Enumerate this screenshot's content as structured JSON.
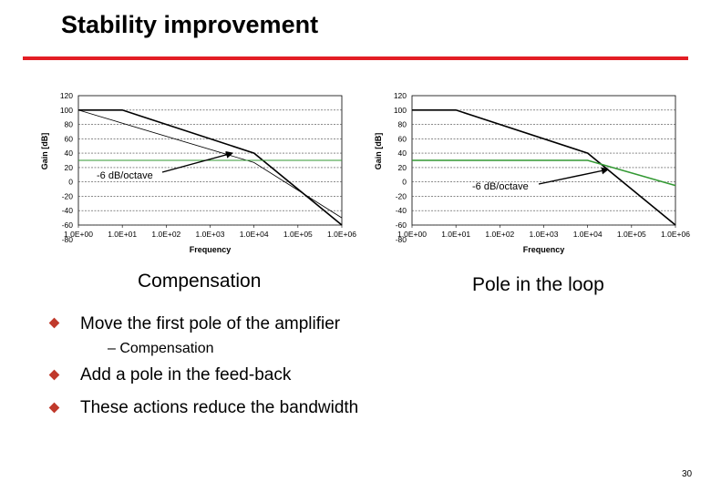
{
  "title": "Stability improvement",
  "accent_color": "#e31e24",
  "bullet_color": "#c0392b",
  "captions": {
    "left": "Compensation",
    "right": "Pole in the loop"
  },
  "bullets": [
    {
      "text": "Move the first pole of the amplifier",
      "sub": "– Compensation"
    },
    {
      "text": "Add a pole in the feed-back"
    },
    {
      "text": "These actions reduce the bandwidth"
    }
  ],
  "page_number": "30",
  "chart_data": [
    {
      "type": "line",
      "ylabel": "Gain [dB]",
      "xlabel": "Frequency",
      "x_scale": "log",
      "xlim": [
        1,
        1000000
      ],
      "ylim": [
        -60,
        120
      ],
      "x_ticks": [
        "1.0E+00",
        "1.0E+01",
        "1.0E+02",
        "1.0E+03",
        "1.0E+04",
        "1.0E+05",
        "1.0E+06"
      ],
      "y_ticks": [
        "120",
        "100",
        "80",
        "60",
        "40",
        "20",
        "0",
        "-20",
        "-40",
        "-60",
        "-80"
      ],
      "grid": "horizontal",
      "annotation": "-6 dB/octave",
      "series": [
        {
          "color": "#000000",
          "width": 1.6,
          "points": [
            [
              1,
              100
            ],
            [
              10,
              100
            ],
            [
              10000,
              40
            ],
            [
              1000000,
              -60
            ]
          ]
        },
        {
          "color": "#000000",
          "width": 0.8,
          "points": [
            [
              1,
              100
            ],
            [
              10000,
              27
            ],
            [
              1000000,
              -50
            ]
          ]
        },
        {
          "color": "#339933",
          "width": 1.0,
          "points": [
            [
              1,
              30
            ],
            [
              1000000,
              30
            ]
          ]
        }
      ]
    },
    {
      "type": "line",
      "ylabel": "Gain [dB]",
      "xlabel": "Frequency",
      "x_scale": "log",
      "xlim": [
        1,
        1000000
      ],
      "ylim": [
        -60,
        120
      ],
      "x_ticks": [
        "1.0E+00",
        "1.0E+01",
        "1.0E+02",
        "1.0E+03",
        "1.0E+04",
        "1.0E+05",
        "1.0E+06"
      ],
      "y_ticks": [
        "120",
        "100",
        "80",
        "60",
        "40",
        "20",
        "0",
        "-20",
        "-40",
        "-60",
        "-80"
      ],
      "grid": "horizontal",
      "annotation": "-6 dB/octave",
      "series": [
        {
          "color": "#000000",
          "width": 1.6,
          "points": [
            [
              1,
              100
            ],
            [
              10,
              100
            ],
            [
              10000,
              40
            ],
            [
              1000000,
              -60
            ]
          ]
        },
        {
          "color": "#339933",
          "width": 1.6,
          "points": [
            [
              1,
              30
            ],
            [
              10000,
              30
            ],
            [
              1000000,
              -5
            ]
          ]
        }
      ]
    }
  ]
}
